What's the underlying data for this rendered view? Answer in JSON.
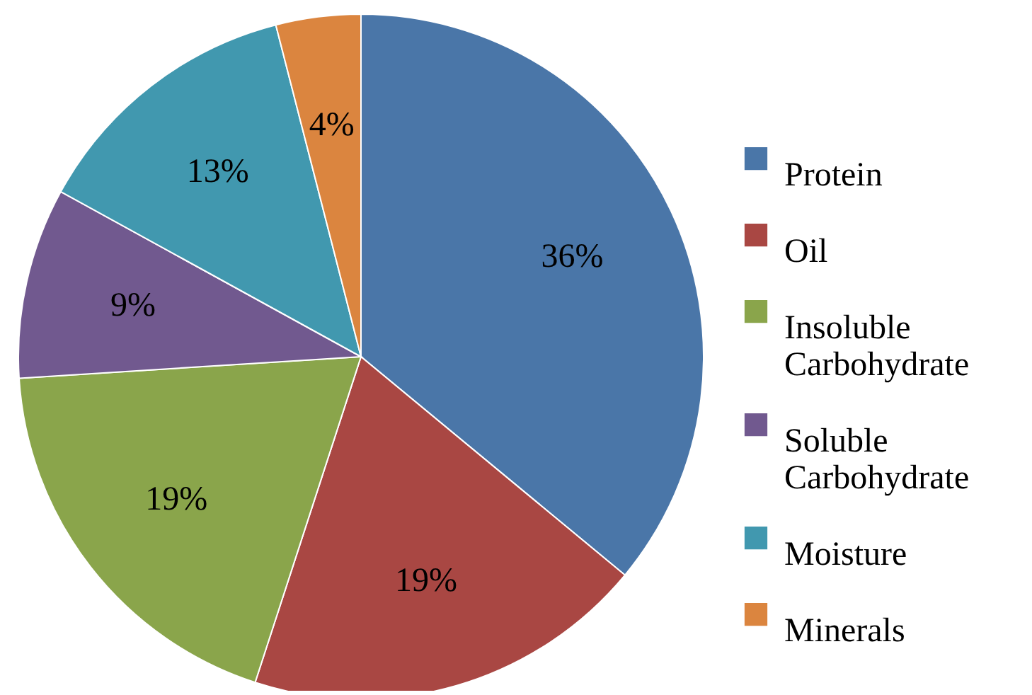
{
  "chart_data": {
    "type": "pie",
    "categories": [
      "Protein",
      "Oil",
      "Insoluble Carbohydrate",
      "Soluble Carbohydrate",
      "Moisture",
      "Minerals"
    ],
    "values": [
      36,
      19,
      19,
      9,
      13,
      4
    ],
    "colors": [
      "#4a76a8",
      "#a94743",
      "#8aa54b",
      "#71598f",
      "#4198af",
      "#db853f"
    ],
    "value_labels": [
      "36%",
      "19%",
      "19%",
      "9%",
      "13%",
      "4%"
    ],
    "legend": "right"
  }
}
